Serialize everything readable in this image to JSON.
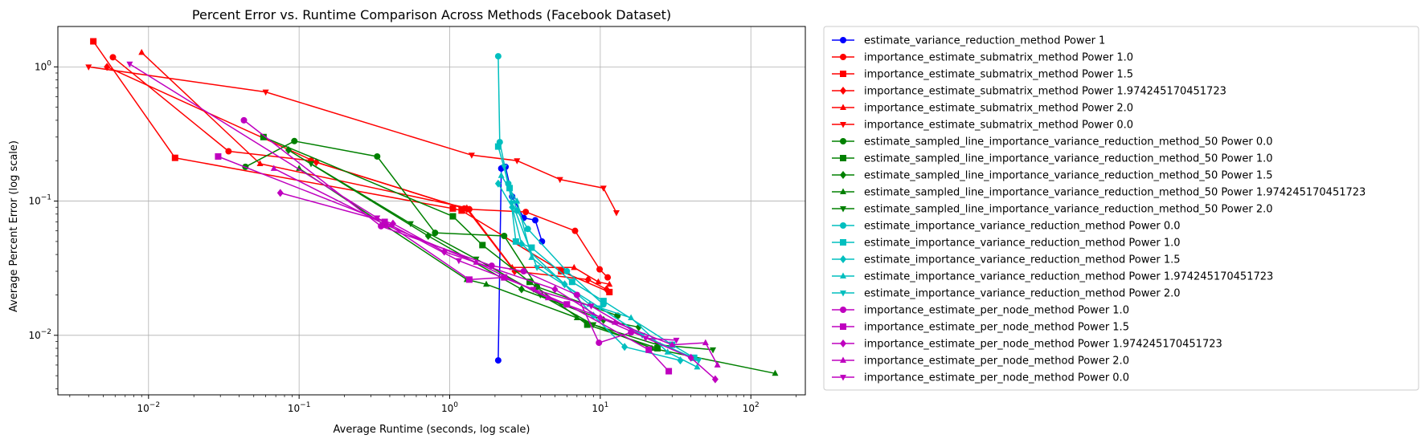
{
  "chart_data": {
    "type": "line",
    "title": "Percent Error vs. Runtime Comparison Across Methods (Facebook Dataset)",
    "xlabel": "Average Runtime (seconds, log scale)",
    "ylabel": "Average Percent Error (log scale)",
    "xscale": "log",
    "yscale": "log",
    "xlim": [
      0.0025,
      230
    ],
    "ylim": [
      0.0036,
      2.0
    ],
    "grid": true,
    "legend_position": "outside-right",
    "x_ticks": [
      {
        "value": 0.01,
        "base": "10",
        "exp": "−2"
      },
      {
        "value": 0.1,
        "base": "10",
        "exp": "−1"
      },
      {
        "value": 1,
        "base": "10",
        "exp": "0"
      },
      {
        "value": 10,
        "base": "10",
        "exp": "1"
      },
      {
        "value": 100,
        "base": "10",
        "exp": "2"
      }
    ],
    "y_ticks": [
      {
        "value": 0.01,
        "base": "10",
        "exp": "−2"
      },
      {
        "value": 0.1,
        "base": "10",
        "exp": "−1"
      },
      {
        "value": 1,
        "base": "10",
        "exp": "0"
      }
    ],
    "series": [
      {
        "name": "estimate_variance_reduction_method Power 1",
        "color": "#0000ff",
        "marker": "circle",
        "points": [
          [
            2.1,
            0.0065
          ],
          [
            2.2,
            0.175
          ],
          [
            2.35,
            0.18
          ],
          [
            2.6,
            0.108
          ],
          [
            3.1,
            0.075
          ],
          [
            3.7,
            0.072
          ],
          [
            4.1,
            0.05
          ]
        ]
      },
      {
        "name": "importance_estimate_submatrix_method Power 1.0",
        "color": "#ff0000",
        "marker": "circle",
        "points": [
          [
            0.0058,
            1.18
          ],
          [
            0.034,
            0.235
          ],
          [
            0.12,
            0.2
          ],
          [
            1.25,
            0.088
          ],
          [
            1.35,
            0.087
          ],
          [
            3.2,
            0.083
          ],
          [
            6.8,
            0.06
          ],
          [
            9.9,
            0.031
          ],
          [
            11.2,
            0.027
          ]
        ]
      },
      {
        "name": "importance_estimate_submatrix_method Power 1.5",
        "color": "#ff0000",
        "marker": "square",
        "points": [
          [
            0.0043,
            1.55
          ],
          [
            0.015,
            0.21
          ],
          [
            1.05,
            0.088
          ],
          [
            1.2,
            0.085
          ],
          [
            5.5,
            0.03
          ],
          [
            11.5,
            0.021
          ]
        ]
      },
      {
        "name": "importance_estimate_submatrix_method Power 1.974245170451723",
        "color": "#ff0000",
        "marker": "diamond",
        "points": [
          [
            0.0053,
            1.0
          ],
          [
            0.13,
            0.195
          ],
          [
            1.3,
            0.087
          ],
          [
            2.7,
            0.03
          ],
          [
            8.3,
            0.026
          ],
          [
            11.0,
            0.022
          ]
        ]
      },
      {
        "name": "importance_estimate_submatrix_method Power 2.0",
        "color": "#ff0000",
        "marker": "triangle-up",
        "points": [
          [
            0.009,
            1.28
          ],
          [
            0.055,
            0.19
          ],
          [
            1.3,
            0.089
          ],
          [
            2.6,
            0.032
          ],
          [
            6.7,
            0.032
          ],
          [
            9.7,
            0.025
          ],
          [
            11.5,
            0.024
          ]
        ]
      },
      {
        "name": "importance_estimate_submatrix_method Power 0.0",
        "color": "#ff0000",
        "marker": "triangle-down",
        "points": [
          [
            0.004,
            1.0
          ],
          [
            0.06,
            0.65
          ],
          [
            1.4,
            0.22
          ],
          [
            2.8,
            0.2
          ],
          [
            5.4,
            0.145
          ],
          [
            10.5,
            0.125
          ],
          [
            12.8,
            0.082
          ]
        ]
      },
      {
        "name": "estimate_sampled_line_importance_variance_reduction_method_50 Power 0.0",
        "color": "#008000",
        "marker": "circle",
        "points": [
          [
            0.044,
            0.18
          ],
          [
            0.093,
            0.28
          ],
          [
            0.33,
            0.215
          ],
          [
            0.8,
            0.058
          ],
          [
            2.3,
            0.055
          ],
          [
            3.8,
            0.023
          ],
          [
            13.0,
            0.014
          ]
        ]
      },
      {
        "name": "estimate_sampled_line_importance_variance_reduction_method_50 Power 1.0",
        "color": "#008000",
        "marker": "square",
        "points": [
          [
            0.058,
            0.3
          ],
          [
            1.05,
            0.077
          ],
          [
            1.65,
            0.047
          ],
          [
            3.4,
            0.025
          ],
          [
            8.2,
            0.012
          ],
          [
            24.0,
            0.008
          ]
        ]
      },
      {
        "name": "estimate_sampled_line_importance_variance_reduction_method_50 Power 1.5",
        "color": "#008000",
        "marker": "diamond",
        "points": [
          [
            0.085,
            0.24
          ],
          [
            0.72,
            0.055
          ],
          [
            3.0,
            0.022
          ],
          [
            10.5,
            0.013
          ],
          [
            18.0,
            0.0115
          ]
        ]
      },
      {
        "name": "estimate_sampled_line_importance_variance_reduction_method_50 Power 1.974245170451723",
        "color": "#008000",
        "marker": "triangle-up",
        "points": [
          [
            0.1,
            0.175
          ],
          [
            1.3,
            0.026
          ],
          [
            1.75,
            0.024
          ],
          [
            7.0,
            0.0135
          ],
          [
            22.0,
            0.008
          ],
          [
            145.0,
            0.0052
          ]
        ]
      },
      {
        "name": "estimate_sampled_line_importance_variance_reduction_method_50 Power 2.0",
        "color": "#008000",
        "marker": "triangle-down",
        "points": [
          [
            0.12,
            0.19
          ],
          [
            0.55,
            0.068
          ],
          [
            1.5,
            0.037
          ],
          [
            4.0,
            0.02
          ],
          [
            9.0,
            0.012
          ],
          [
            24.0,
            0.0085
          ],
          [
            56.0,
            0.0078
          ]
        ]
      },
      {
        "name": "estimate_importance_variance_reduction_method Power 0.0",
        "color": "#00bfbf",
        "marker": "circle",
        "points": [
          [
            2.1,
            1.2
          ],
          [
            2.15,
            0.275
          ],
          [
            2.45,
            0.135
          ],
          [
            2.8,
            0.085
          ],
          [
            3.3,
            0.062
          ],
          [
            6.0,
            0.03
          ],
          [
            10.5,
            0.017
          ]
        ]
      },
      {
        "name": "estimate_importance_variance_reduction_method Power 1.0",
        "color": "#00bfbf",
        "marker": "square",
        "points": [
          [
            2.1,
            0.255
          ],
          [
            2.5,
            0.125
          ],
          [
            2.75,
            0.05
          ],
          [
            3.5,
            0.045
          ],
          [
            6.5,
            0.025
          ],
          [
            10.5,
            0.018
          ],
          [
            30.0,
            0.0085
          ],
          [
            42.0,
            0.0068
          ]
        ]
      },
      {
        "name": "estimate_importance_variance_reduction_method Power 1.5",
        "color": "#00bfbf",
        "marker": "diamond",
        "points": [
          [
            2.1,
            0.135
          ],
          [
            2.6,
            0.09
          ],
          [
            3.0,
            0.048
          ],
          [
            5.8,
            0.024
          ],
          [
            9.0,
            0.014
          ],
          [
            14.5,
            0.0082
          ],
          [
            34.0,
            0.0065
          ]
        ]
      },
      {
        "name": "estimate_importance_variance_reduction_method Power 1.974245170451723",
        "color": "#00bfbf",
        "marker": "triangle-up",
        "points": [
          [
            2.2,
            0.155
          ],
          [
            2.8,
            0.1
          ],
          [
            3.5,
            0.038
          ],
          [
            8.5,
            0.017
          ],
          [
            16.0,
            0.0135
          ],
          [
            28.0,
            0.0075
          ],
          [
            44.0,
            0.0058
          ]
        ]
      },
      {
        "name": "estimate_importance_variance_reduction_method Power 2.0",
        "color": "#00bfbf",
        "marker": "triangle-down",
        "points": [
          [
            2.3,
            0.18
          ],
          [
            2.6,
            0.097
          ],
          [
            3.8,
            0.032
          ],
          [
            10.0,
            0.016
          ],
          [
            19.0,
            0.01
          ],
          [
            45.0,
            0.0065
          ]
        ]
      },
      {
        "name": "importance_estimate_per_node_method Power 1.0",
        "color": "#bf00bf",
        "marker": "circle",
        "points": [
          [
            0.043,
            0.4
          ],
          [
            0.35,
            0.065
          ],
          [
            1.9,
            0.033
          ],
          [
            3.1,
            0.03
          ],
          [
            7.0,
            0.02
          ],
          [
            9.8,
            0.0088
          ],
          [
            16.0,
            0.0105
          ]
        ]
      },
      {
        "name": "importance_estimate_per_node_method Power 1.5",
        "color": "#bf00bf",
        "marker": "square",
        "points": [
          [
            0.029,
            0.215
          ],
          [
            0.37,
            0.07
          ],
          [
            1.35,
            0.026
          ],
          [
            2.3,
            0.027
          ],
          [
            6.0,
            0.017
          ],
          [
            21.0,
            0.0078
          ],
          [
            28.5,
            0.0054
          ]
        ]
      },
      {
        "name": "importance_estimate_per_node_method Power 1.974245170451723",
        "color": "#bf00bf",
        "marker": "diamond",
        "points": [
          [
            0.075,
            0.115
          ],
          [
            0.42,
            0.068
          ],
          [
            0.92,
            0.042
          ],
          [
            5.0,
            0.022
          ],
          [
            10.0,
            0.0135
          ],
          [
            40.0,
            0.0068
          ],
          [
            58.0,
            0.0047
          ]
        ]
      },
      {
        "name": "importance_estimate_per_node_method Power 2.0",
        "color": "#bf00bf",
        "marker": "triangle-up",
        "points": [
          [
            0.068,
            0.175
          ],
          [
            0.38,
            0.066
          ],
          [
            1.5,
            0.035
          ],
          [
            4.5,
            0.019
          ],
          [
            12.5,
            0.0125
          ],
          [
            30.0,
            0.0085
          ],
          [
            50.0,
            0.0088
          ],
          [
            60.0,
            0.006
          ]
        ]
      },
      {
        "name": "importance_estimate_per_node_method Power 0.0",
        "color": "#bf00bf",
        "marker": "triangle-down",
        "points": [
          [
            0.0075,
            1.05
          ],
          [
            0.33,
            0.075
          ],
          [
            1.15,
            0.036
          ],
          [
            3.6,
            0.022
          ],
          [
            8.7,
            0.0165
          ],
          [
            20.0,
            0.0095
          ],
          [
            32.0,
            0.0092
          ]
        ]
      }
    ]
  }
}
